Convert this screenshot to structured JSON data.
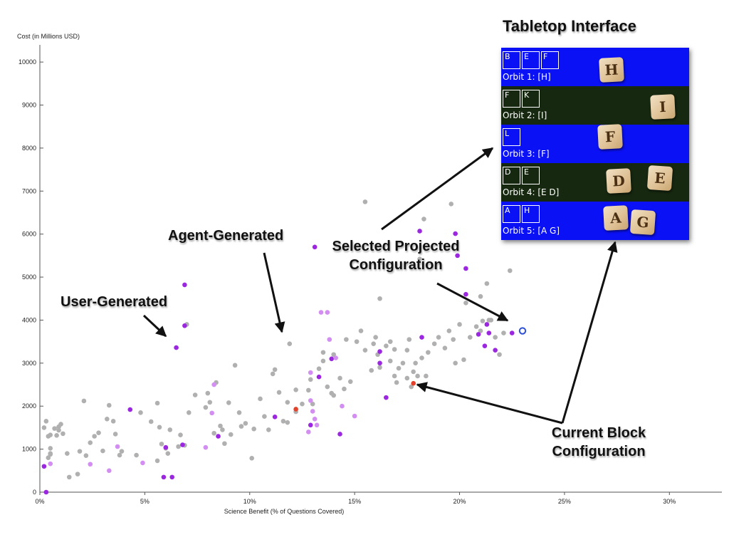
{
  "chart_data": {
    "type": "scatter",
    "xlabel": "Science Benefit (% of Questions Covered)",
    "ylabel": "Cost (in Millions USD)",
    "xlim": [
      0,
      32.5
    ],
    "ylim": [
      0,
      10300
    ],
    "x_ticks": [
      "0%",
      "5%",
      "10%",
      "15%",
      "20%",
      "25%",
      "30%"
    ],
    "y_ticks": [
      "0",
      "1000",
      "2000",
      "3000",
      "4000",
      "5000",
      "6000",
      "7000",
      "8000",
      "9000",
      "10000"
    ],
    "colors": {
      "agent": "#b0b0b0",
      "user": "#9b27e0",
      "user_light": "#d28ef0",
      "current": "#e5402a",
      "selected_ring": "#2d4fd6"
    },
    "series": [
      {
        "type": "agent",
        "points": [
          [
            0.3,
            1650
          ],
          [
            0.4,
            1300
          ],
          [
            0.5,
            1330
          ],
          [
            0.8,
            1320
          ],
          [
            0.9,
            1520
          ],
          [
            0.9,
            1440
          ],
          [
            1.1,
            1360
          ],
          [
            0.5,
            1020
          ],
          [
            0.5,
            900
          ],
          [
            0.5,
            880
          ],
          [
            0.4,
            800
          ],
          [
            1.3,
            900
          ],
          [
            1.4,
            350
          ],
          [
            1.8,
            420
          ],
          [
            1.9,
            950
          ],
          [
            2.1,
            2120
          ],
          [
            2.2,
            850
          ],
          [
            2.6,
            1300
          ],
          [
            2.8,
            1380
          ],
          [
            3.0,
            960
          ],
          [
            3.3,
            2020
          ],
          [
            3.5,
            1650
          ],
          [
            3.6,
            1350
          ],
          [
            3.8,
            860
          ],
          [
            3.9,
            950
          ],
          [
            4.6,
            860
          ],
          [
            5.3,
            1640
          ],
          [
            5.6,
            2070
          ],
          [
            5.6,
            730
          ],
          [
            5.8,
            1120
          ],
          [
            6.0,
            1020
          ],
          [
            6.1,
            900
          ],
          [
            6.6,
            1060
          ],
          [
            6.7,
            1330
          ],
          [
            6.9,
            1090
          ],
          [
            7.1,
            1850
          ],
          [
            7.4,
            2260
          ],
          [
            7.9,
            1970
          ],
          [
            8.1,
            2090
          ],
          [
            8.3,
            1370
          ],
          [
            8.4,
            2550
          ],
          [
            8.6,
            1540
          ],
          [
            8.7,
            1450
          ],
          [
            8.8,
            1130
          ],
          [
            9.0,
            2080
          ],
          [
            9.1,
            1340
          ],
          [
            9.3,
            2950
          ],
          [
            9.6,
            1530
          ],
          [
            9.8,
            1600
          ],
          [
            10.1,
            790
          ],
          [
            10.2,
            1470
          ],
          [
            10.7,
            1760
          ],
          [
            10.9,
            1450
          ],
          [
            11.1,
            2750
          ],
          [
            11.2,
            2850
          ],
          [
            11.4,
            2320
          ],
          [
            11.6,
            1650
          ],
          [
            11.8,
            1620
          ],
          [
            11.9,
            3450
          ],
          [
            12.2,
            1870
          ],
          [
            12.5,
            2050
          ],
          [
            12.8,
            2370
          ],
          [
            12.9,
            2620
          ],
          [
            13.0,
            2050
          ],
          [
            13.3,
            2870
          ],
          [
            13.5,
            3050
          ],
          [
            13.7,
            2450
          ],
          [
            13.9,
            2300
          ],
          [
            14.0,
            3200
          ],
          [
            14.3,
            2650
          ],
          [
            14.5,
            2400
          ],
          [
            14.8,
            2570
          ],
          [
            15.1,
            3500
          ],
          [
            15.3,
            3750
          ],
          [
            15.5,
            3300
          ],
          [
            15.8,
            2830
          ],
          [
            16.0,
            3600
          ],
          [
            16.1,
            3200
          ],
          [
            16.2,
            2900
          ],
          [
            16.5,
            3400
          ],
          [
            16.7,
            3500
          ],
          [
            16.9,
            3320
          ],
          [
            17.1,
            2880
          ],
          [
            17.3,
            3000
          ],
          [
            17.5,
            3300
          ],
          [
            17.6,
            3550
          ],
          [
            17.7,
            2450
          ],
          [
            17.9,
            3000
          ],
          [
            18.0,
            2700
          ],
          [
            18.2,
            3120
          ],
          [
            18.4,
            2700
          ],
          [
            18.5,
            3250
          ],
          [
            18.8,
            3450
          ],
          [
            19.0,
            3600
          ],
          [
            19.3,
            3350
          ],
          [
            19.5,
            3750
          ],
          [
            19.7,
            3550
          ],
          [
            19.8,
            3000
          ],
          [
            20.0,
            3900
          ],
          [
            20.3,
            4400
          ],
          [
            20.5,
            3600
          ],
          [
            20.8,
            3850
          ],
          [
            21.0,
            3750
          ],
          [
            21.3,
            4850
          ],
          [
            21.5,
            4000
          ],
          [
            21.7,
            3600
          ],
          [
            21.9,
            3200
          ],
          [
            22.1,
            3700
          ],
          [
            22.4,
            5150
          ],
          [
            17.0,
            2550
          ],
          [
            17.5,
            2650
          ],
          [
            17.8,
            2800
          ],
          [
            15.5,
            6750
          ],
          [
            16.2,
            4500
          ],
          [
            18.1,
            5420
          ],
          [
            19.6,
            6700
          ],
          [
            18.3,
            6350
          ],
          [
            21.0,
            4550
          ],
          [
            21.4,
            4000
          ],
          [
            21.1,
            3980
          ],
          [
            20.2,
            3080
          ],
          [
            15.9,
            3450
          ],
          [
            16.7,
            3050
          ],
          [
            16.9,
            2700
          ],
          [
            12.2,
            2380
          ],
          [
            10.5,
            2170
          ],
          [
            13.5,
            3250
          ],
          [
            14.6,
            3550
          ],
          [
            9.5,
            1850
          ],
          [
            8.0,
            2300
          ],
          [
            4.8,
            1850
          ],
          [
            6.2,
            1450
          ],
          [
            3.2,
            1700
          ],
          [
            2.4,
            1150
          ],
          [
            0.7,
            1480
          ],
          [
            0.2,
            1500
          ],
          [
            1.0,
            1580
          ],
          [
            5.7,
            1510
          ],
          [
            7.0,
            3900
          ],
          [
            11.8,
            2090
          ],
          [
            14.0,
            2250
          ]
        ]
      },
      {
        "type": "user",
        "points": [
          [
            0.2,
            600
          ],
          [
            0.3,
            0
          ],
          [
            4.3,
            1920
          ],
          [
            6.0,
            1040
          ],
          [
            5.9,
            350
          ],
          [
            6.3,
            350
          ],
          [
            6.8,
            1100
          ],
          [
            6.9,
            4820
          ],
          [
            6.9,
            3870
          ],
          [
            6.5,
            3360
          ],
          [
            8.5,
            1300
          ],
          [
            11.2,
            1750
          ],
          [
            13.1,
            5700
          ],
          [
            13.3,
            2680
          ],
          [
            13.9,
            3100
          ],
          [
            14.3,
            1350
          ],
          [
            16.2,
            3000
          ],
          [
            16.5,
            2200
          ],
          [
            18.1,
            6070
          ],
          [
            19.8,
            6010
          ],
          [
            19.9,
            5500
          ],
          [
            20.3,
            5200
          ],
          [
            20.3,
            4600
          ],
          [
            20.9,
            3670
          ],
          [
            21.3,
            3900
          ],
          [
            21.4,
            3700
          ],
          [
            21.7,
            3300
          ],
          [
            22.5,
            3700
          ],
          [
            12.9,
            1560
          ],
          [
            16.2,
            3270
          ],
          [
            18.2,
            3600
          ],
          [
            21.2,
            3400
          ]
        ]
      },
      {
        "type": "user_light",
        "points": [
          [
            0.5,
            660
          ],
          [
            2.4,
            650
          ],
          [
            3.3,
            500
          ],
          [
            3.7,
            1060
          ],
          [
            4.9,
            680
          ],
          [
            7.9,
            1040
          ],
          [
            8.2,
            1840
          ],
          [
            8.3,
            2500
          ],
          [
            12.9,
            2780
          ],
          [
            12.9,
            2130
          ],
          [
            13.0,
            1880
          ],
          [
            13.1,
            1700
          ],
          [
            13.4,
            4180
          ],
          [
            13.7,
            4180
          ],
          [
            13.8,
            3550
          ],
          [
            14.1,
            3120
          ],
          [
            14.4,
            2000
          ],
          [
            15.0,
            1770
          ],
          [
            12.8,
            1400
          ],
          [
            13.2,
            1560
          ]
        ]
      },
      {
        "type": "current",
        "points": [
          [
            12.2,
            1930
          ],
          [
            17.8,
            2530
          ]
        ]
      },
      {
        "type": "selected",
        "points": [
          [
            23.0,
            3750
          ]
        ]
      }
    ],
    "annotations": {
      "user_generated": "User-Generated",
      "agent_generated": "Agent-Generated",
      "selected_line1": "Selected Projected",
      "selected_line2": "Configuration",
      "current_line1": "Current Block",
      "current_line2": "Configuration"
    }
  },
  "tabletop": {
    "title": "Tabletop Interface",
    "colors": {
      "blue": "#0a11f5",
      "dark": "#162810"
    },
    "orbits": [
      {
        "label": "Orbit 1: [H]",
        "color": "blue",
        "boxes": [
          "B",
          "E",
          "F"
        ],
        "tiles": [
          "H"
        ]
      },
      {
        "label": "Orbit 2: [I]",
        "color": "dark",
        "boxes": [
          "F",
          "K"
        ],
        "tiles": [
          "I"
        ]
      },
      {
        "label": "Orbit 3: [F]",
        "color": "blue",
        "boxes": [
          "L"
        ],
        "tiles": [
          "F"
        ]
      },
      {
        "label": "Orbit 4: [E D]",
        "color": "dark",
        "boxes": [
          "D",
          "E"
        ],
        "tiles": [
          "D",
          "E"
        ]
      },
      {
        "label": "Orbit 5: [A G]",
        "color": "blue",
        "boxes": [
          "A",
          "H"
        ],
        "tiles": [
          "A",
          "G"
        ]
      }
    ]
  }
}
